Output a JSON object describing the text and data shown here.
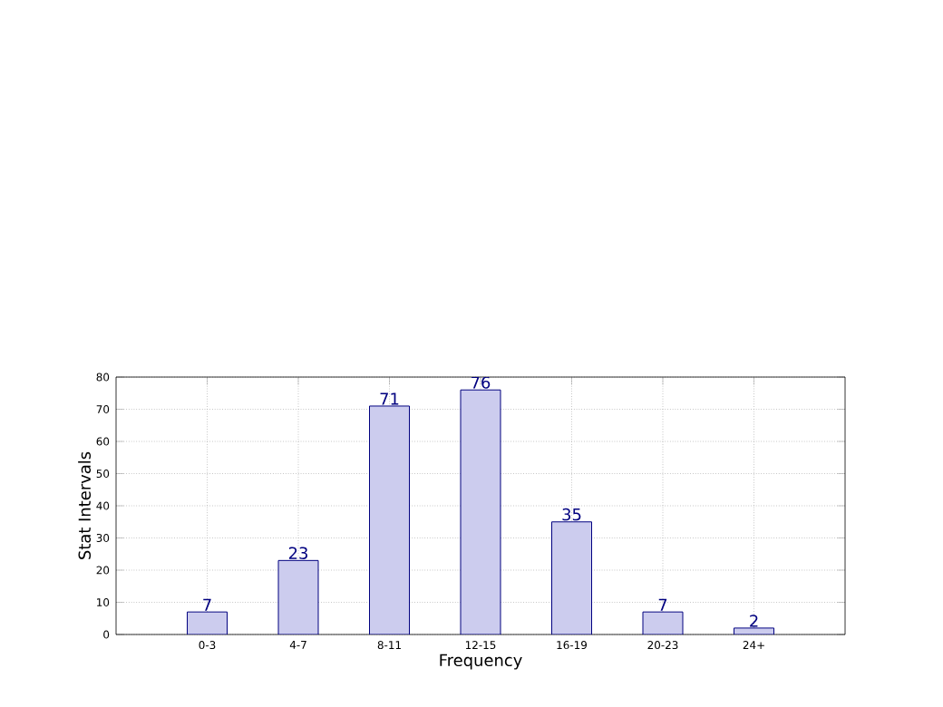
{
  "chart_data": {
    "type": "bar",
    "xlabel": "Frequency",
    "ylabel": "Stat Intervals",
    "categories": [
      "0-3",
      "4-7",
      "8-11",
      "12-15",
      "16-19",
      "20-23",
      "24+"
    ],
    "values": [
      7,
      23,
      71,
      76,
      35,
      7,
      2
    ],
    "color": "#ccccee",
    "ylim": [
      0,
      80
    ],
    "yticks": [
      0,
      10,
      20,
      30,
      40,
      50,
      60,
      70,
      80
    ],
    "grid": true,
    "data_labels": true
  }
}
